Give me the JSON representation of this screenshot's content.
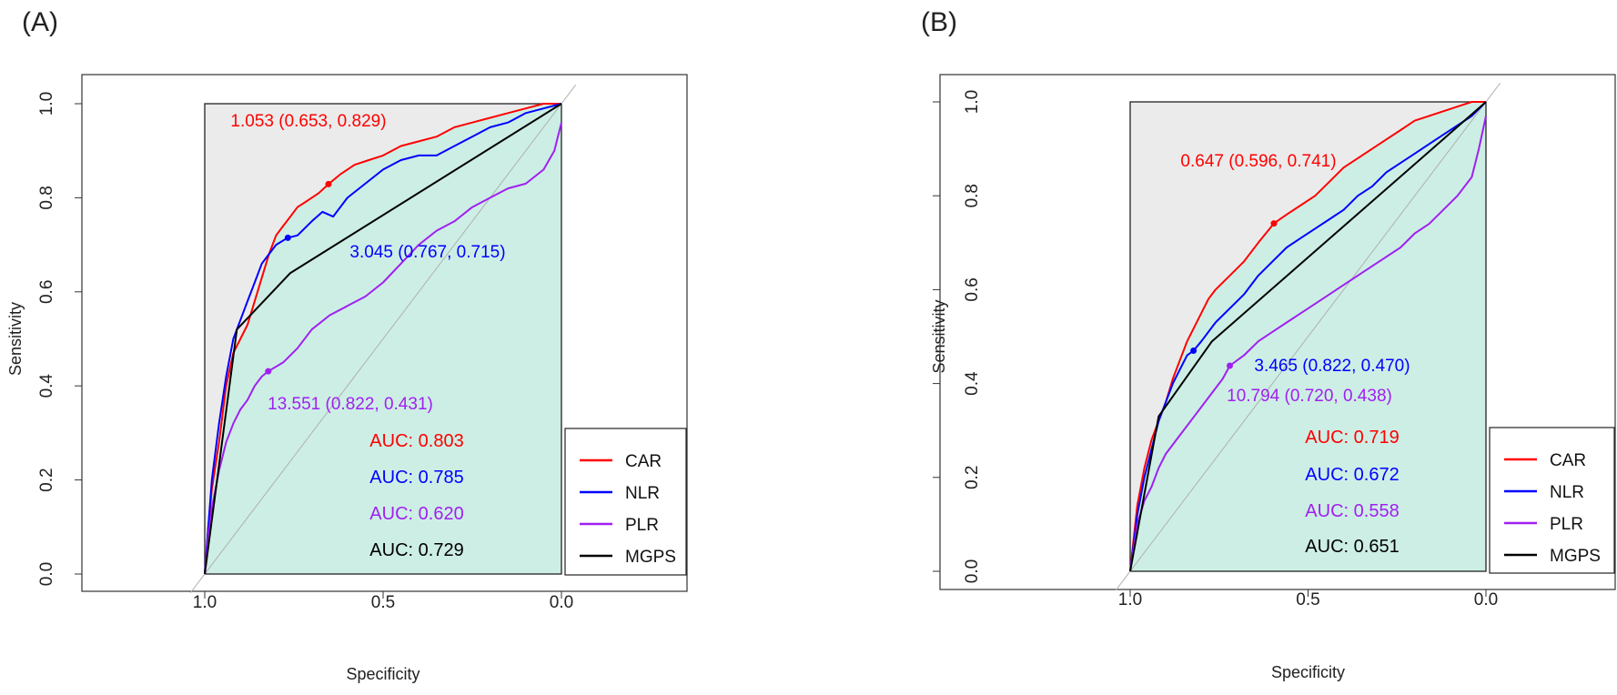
{
  "panels": [
    {
      "label": "(A)",
      "chart_data": {
        "type": "line",
        "title": "",
        "xlabel": "Specificity",
        "ylabel": "Sensitivity",
        "xlim": [
          1.0,
          0.0
        ],
        "ylim": [
          0.0,
          1.0
        ],
        "x_ticks": [
          "1.0",
          "0.5",
          "0.0"
        ],
        "y_ticks": [
          "0.0",
          "0.2",
          "0.4",
          "0.6",
          "0.8",
          "1.0"
        ],
        "legend": {
          "placement": "bottom-right",
          "entries": [
            "CAR",
            "NLR",
            "PLR",
            "MGPS"
          ]
        },
        "series": [
          {
            "name": "CAR",
            "color": "#ff0000",
            "auc_label": "AUC: 0.803",
            "threshold_label": "1.053 (0.653, 0.829)",
            "threshold_point": [
              0.653,
              0.829
            ],
            "spec": [
              1.0,
              0.99,
              0.98,
              0.96,
              0.94,
              0.92,
              0.9,
              0.88,
              0.86,
              0.84,
              0.82,
              0.8,
              0.78,
              0.76,
              0.74,
              0.72,
              0.7,
              0.68,
              0.653,
              0.62,
              0.58,
              0.54,
              0.5,
              0.45,
              0.4,
              0.35,
              0.3,
              0.25,
              0.2,
              0.15,
              0.1,
              0.05,
              0.0
            ],
            "sens": [
              0.0,
              0.1,
              0.18,
              0.28,
              0.4,
              0.47,
              0.5,
              0.53,
              0.58,
              0.63,
              0.68,
              0.72,
              0.74,
              0.76,
              0.78,
              0.79,
              0.8,
              0.81,
              0.829,
              0.85,
              0.87,
              0.88,
              0.89,
              0.91,
              0.92,
              0.93,
              0.95,
              0.96,
              0.97,
              0.98,
              0.99,
              1.0,
              1.0
            ]
          },
          {
            "name": "NLR",
            "color": "#0000ff",
            "auc_label": "AUC: 0.785",
            "threshold_label": "3.045 (0.767, 0.715)",
            "threshold_point": [
              0.767,
              0.715
            ],
            "spec": [
              1.0,
              0.99,
              0.98,
              0.96,
              0.94,
              0.92,
              0.9,
              0.88,
              0.86,
              0.84,
              0.82,
              0.8,
              0.767,
              0.74,
              0.7,
              0.67,
              0.64,
              0.6,
              0.55,
              0.5,
              0.45,
              0.4,
              0.35,
              0.3,
              0.25,
              0.2,
              0.15,
              0.1,
              0.05,
              0.0
            ],
            "sens": [
              0.0,
              0.1,
              0.2,
              0.32,
              0.42,
              0.5,
              0.54,
              0.58,
              0.62,
              0.66,
              0.68,
              0.7,
              0.715,
              0.72,
              0.75,
              0.77,
              0.76,
              0.8,
              0.83,
              0.86,
              0.88,
              0.89,
              0.89,
              0.91,
              0.93,
              0.95,
              0.96,
              0.98,
              0.99,
              1.0
            ]
          },
          {
            "name": "PLR",
            "color": "#a020f0",
            "auc_label": "AUC: 0.620",
            "threshold_label": "13.551 (0.822, 0.431)",
            "threshold_point": [
              0.822,
              0.431
            ],
            "spec": [
              1.0,
              0.99,
              0.98,
              0.96,
              0.94,
              0.92,
              0.9,
              0.88,
              0.86,
              0.84,
              0.822,
              0.78,
              0.74,
              0.7,
              0.65,
              0.6,
              0.55,
              0.5,
              0.45,
              0.4,
              0.35,
              0.3,
              0.25,
              0.2,
              0.15,
              0.1,
              0.05,
              0.02,
              0.0
            ],
            "sens": [
              0.0,
              0.08,
              0.14,
              0.22,
              0.28,
              0.32,
              0.35,
              0.37,
              0.4,
              0.42,
              0.431,
              0.45,
              0.48,
              0.52,
              0.55,
              0.57,
              0.59,
              0.62,
              0.66,
              0.7,
              0.73,
              0.75,
              0.78,
              0.8,
              0.82,
              0.83,
              0.86,
              0.9,
              0.96
            ]
          },
          {
            "name": "MGPS",
            "color": "#000000",
            "auc_label": "AUC: 0.729",
            "spec": [
              1.0,
              0.91,
              0.76,
              0.0
            ],
            "sens": [
              0.0,
              0.52,
              0.64,
              1.0
            ]
          }
        ]
      }
    },
    {
      "label": "(B)",
      "chart_data": {
        "type": "line",
        "title": "",
        "xlabel": "Specificity",
        "ylabel": "Sensitivity",
        "xlim": [
          1.0,
          0.0
        ],
        "ylim": [
          0.0,
          1.0
        ],
        "x_ticks": [
          "1.0",
          "0.5",
          "0.0"
        ],
        "y_ticks": [
          "0.0",
          "0.2",
          "0.4",
          "0.6",
          "0.8",
          "1.0"
        ],
        "legend": {
          "placement": "bottom-right",
          "entries": [
            "CAR",
            "NLR",
            "PLR",
            "MGPS"
          ]
        },
        "series": [
          {
            "name": "CAR",
            "color": "#ff0000",
            "auc_label": "AUC: 0.719",
            "threshold_label": "0.647 (0.596, 0.741)",
            "threshold_point": [
              0.596,
              0.741
            ],
            "spec": [
              1.0,
              0.98,
              0.96,
              0.94,
              0.92,
              0.9,
              0.88,
              0.86,
              0.84,
              0.82,
              0.8,
              0.78,
              0.76,
              0.72,
              0.68,
              0.64,
              0.596,
              0.56,
              0.52,
              0.48,
              0.44,
              0.4,
              0.36,
              0.32,
              0.28,
              0.24,
              0.2,
              0.16,
              0.12,
              0.08,
              0.04,
              0.0
            ],
            "sens": [
              0.0,
              0.14,
              0.22,
              0.28,
              0.32,
              0.36,
              0.41,
              0.45,
              0.49,
              0.52,
              0.55,
              0.58,
              0.6,
              0.63,
              0.66,
              0.7,
              0.741,
              0.76,
              0.78,
              0.8,
              0.83,
              0.86,
              0.88,
              0.9,
              0.92,
              0.94,
              0.96,
              0.97,
              0.98,
              0.99,
              1.0,
              1.0
            ]
          },
          {
            "name": "NLR",
            "color": "#0000ff",
            "auc_label": "AUC: 0.672",
            "threshold_label": "3.465 (0.822, 0.470)",
            "threshold_point": [
              0.822,
              0.47
            ],
            "spec": [
              1.0,
              0.98,
              0.96,
              0.94,
              0.92,
              0.9,
              0.88,
              0.86,
              0.84,
              0.822,
              0.8,
              0.76,
              0.72,
              0.68,
              0.64,
              0.6,
              0.56,
              0.52,
              0.48,
              0.44,
              0.4,
              0.36,
              0.32,
              0.28,
              0.24,
              0.2,
              0.16,
              0.12,
              0.08,
              0.04,
              0.0
            ],
            "sens": [
              0.0,
              0.12,
              0.2,
              0.26,
              0.32,
              0.36,
              0.4,
              0.43,
              0.46,
              0.47,
              0.49,
              0.53,
              0.56,
              0.59,
              0.63,
              0.66,
              0.69,
              0.71,
              0.73,
              0.75,
              0.77,
              0.8,
              0.82,
              0.85,
              0.87,
              0.89,
              0.91,
              0.93,
              0.95,
              0.97,
              1.0
            ]
          },
          {
            "name": "PLR",
            "color": "#a020f0",
            "auc_label": "AUC: 0.558",
            "threshold_label": "10.794 (0.720, 0.438)",
            "threshold_point": [
              0.72,
              0.438
            ],
            "spec": [
              1.0,
              0.98,
              0.96,
              0.94,
              0.92,
              0.9,
              0.86,
              0.82,
              0.78,
              0.74,
              0.72,
              0.68,
              0.64,
              0.6,
              0.56,
              0.52,
              0.48,
              0.44,
              0.4,
              0.36,
              0.32,
              0.28,
              0.24,
              0.2,
              0.16,
              0.12,
              0.08,
              0.04,
              0.02,
              0.0
            ],
            "sens": [
              0.0,
              0.1,
              0.15,
              0.18,
              0.22,
              0.25,
              0.29,
              0.33,
              0.37,
              0.41,
              0.438,
              0.46,
              0.49,
              0.51,
              0.53,
              0.55,
              0.57,
              0.59,
              0.61,
              0.63,
              0.65,
              0.67,
              0.69,
              0.72,
              0.74,
              0.77,
              0.8,
              0.84,
              0.9,
              0.97
            ]
          },
          {
            "name": "MGPS",
            "color": "#000000",
            "auc_label": "AUC: 0.651",
            "spec": [
              1.0,
              0.92,
              0.77,
              0.0
            ],
            "sens": [
              0.0,
              0.33,
              0.49,
              1.0
            ]
          }
        ]
      }
    }
  ]
}
